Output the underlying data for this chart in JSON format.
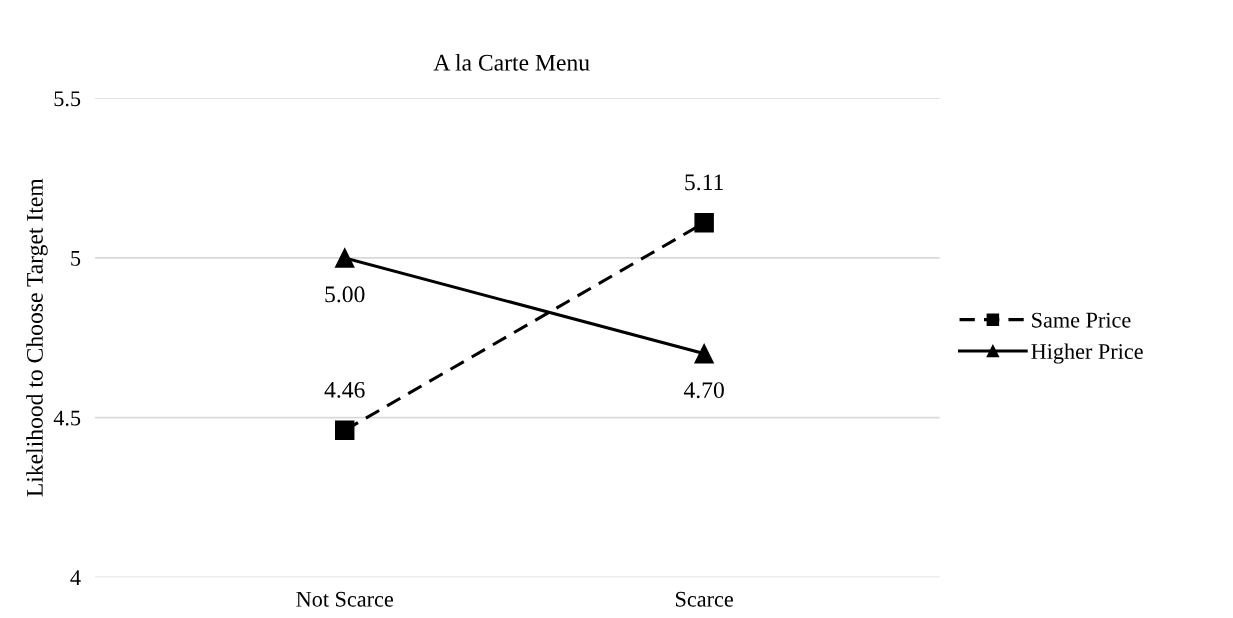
{
  "chart_data": {
    "type": "line",
    "title": "A la Carte Menu",
    "ylabel": "Likelihood to Choose Target Item",
    "categories": [
      "Not Scarce",
      "Scarce"
    ],
    "series": [
      {
        "name": "Same Price",
        "color": "#000000",
        "values": [
          4.46,
          5.11
        ],
        "value_labels": [
          "4.46",
          "5.11"
        ],
        "marker": "square",
        "line_style": "dashed"
      },
      {
        "name": "Higher Price",
        "color": "#000000",
        "values": [
          5.0,
          4.7
        ],
        "value_labels": [
          "5.00",
          "4.70"
        ],
        "marker": "triangle",
        "line_style": "solid"
      }
    ],
    "ylim": [
      4,
      5.5
    ],
    "yticks": [
      4,
      4.5,
      5,
      5.5
    ],
    "grid": "y",
    "legend": "right"
  }
}
